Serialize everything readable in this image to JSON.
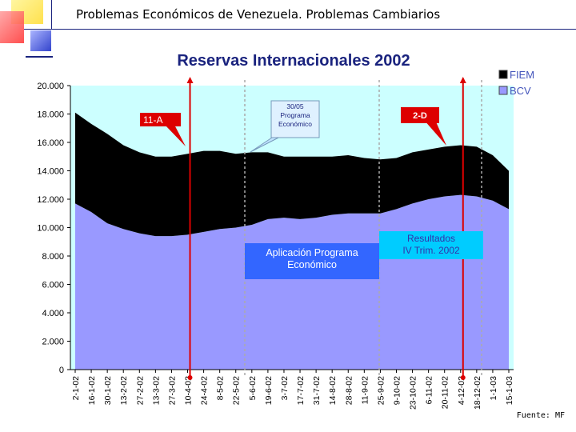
{
  "slide": {
    "header": "Problemas Económicos de Venezuela.  Problemas Cambiarios",
    "footer": "Fuente: MF"
  },
  "chart_data": {
    "type": "area",
    "title": "Reservas Internacionales 2002",
    "ylim": [
      0,
      20000
    ],
    "y_ticks": [
      "0",
      "2.000",
      "4.000",
      "6.000",
      "8.000",
      "10.000",
      "12.000",
      "14.000",
      "16.000",
      "18.000",
      "20.000"
    ],
    "y_tick_values": [
      0,
      2000,
      4000,
      6000,
      8000,
      10000,
      12000,
      14000,
      16000,
      18000,
      20000
    ],
    "x_labels": [
      "2-1-02",
      "16-1-02",
      "30-1-02",
      "13-2-02",
      "27-2-02",
      "13-3-02",
      "27-3-02",
      "10-4-02",
      "24-4-02",
      "8-5-02",
      "22-5-02",
      "5-6-02",
      "19-6-02",
      "3-7-02",
      "17-7-02",
      "31-7-02",
      "14-8-02",
      "28-8-02",
      "11-9-02",
      "25-9-02",
      "9-10-02",
      "23-10-02",
      "6-11-02",
      "20-11-02",
      "4-12-02",
      "18-12-02",
      "1-1-03",
      "15-1-03"
    ],
    "series": [
      {
        "name": "BCV",
        "color": "#9999ff",
        "values": [
          11700,
          11100,
          10300,
          9900,
          9600,
          9400,
          9400,
          9500,
          9700,
          9900,
          10000,
          10200,
          10600,
          10700,
          10600,
          10700,
          10900,
          11000,
          11000,
          11000,
          11300,
          11700,
          12000,
          12200,
          12300,
          12200,
          11900,
          11300
        ]
      },
      {
        "name": "FIEM",
        "color": "#000000",
        "values": [
          6400,
          6200,
          6300,
          5900,
          5700,
          5600,
          5600,
          5700,
          5700,
          5500,
          5200,
          5100,
          4700,
          4300,
          4400,
          4300,
          4100,
          4100,
          3900,
          3800,
          3600,
          3600,
          3500,
          3500,
          3500,
          3500,
          3200,
          2700
        ]
      }
    ],
    "legend": {
      "position": "top-right",
      "items": [
        "FIEM",
        "BCV"
      ]
    },
    "background_color": "#ccffff",
    "annotations": [
      {
        "text": "11-A",
        "style": "red-box",
        "x_label": "10-4-02"
      },
      {
        "text": "30/05 Programa Económico",
        "style": "blue-callout"
      },
      {
        "text": "2-D",
        "style": "red-box",
        "x_label": "4-12-02"
      },
      {
        "text": "Aplicación Programa Económico",
        "style": "blue-box"
      },
      {
        "text": "Resultados IV Trim. 2002",
        "style": "cyan-box"
      }
    ]
  }
}
